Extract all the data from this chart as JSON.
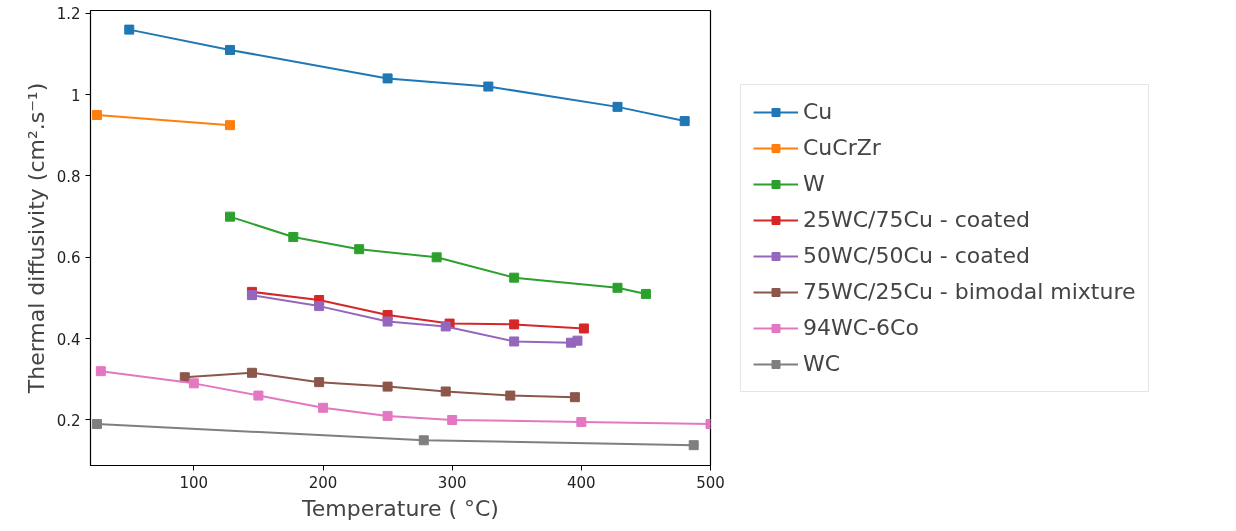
{
  "chart_data": {
    "type": "line",
    "xlabel": "Temperature ( °C)",
    "ylabel": "Thermal diffusivity (cm².s⁻¹)",
    "xlim": [
      20,
      500
    ],
    "ylim": [
      0.088,
      1.207
    ],
    "xticks": [
      100,
      200,
      300,
      400,
      500
    ],
    "yticks": [
      0.2,
      0.4,
      0.6,
      0.8,
      1.0,
      1.2
    ],
    "grid": false,
    "legend": "right",
    "marker": "square",
    "line_style": "solid",
    "series": [
      {
        "name": "Cu",
        "color": "#1f77b4",
        "x": [
          50,
          128,
          250,
          328,
          428,
          480
        ],
        "values": [
          1.16,
          1.11,
          1.04,
          1.02,
          0.97,
          0.935
        ]
      },
      {
        "name": "CuCrZr",
        "color": "#ff7f0e",
        "x": [
          25,
          128
        ],
        "values": [
          0.95,
          0.925
        ]
      },
      {
        "name": "W",
        "color": "#2ca02c",
        "x": [
          128,
          177,
          228,
          288,
          348,
          428,
          450
        ],
        "values": [
          0.7,
          0.65,
          0.62,
          0.6,
          0.55,
          0.525,
          0.51
        ]
      },
      {
        "name": "25WC/75Cu - coated",
        "color": "#d62728",
        "x": [
          145,
          197,
          250,
          298,
          348,
          402
        ],
        "values": [
          0.515,
          0.495,
          0.458,
          0.437,
          0.435,
          0.425
        ]
      },
      {
        "name": "50WC/50Cu - coated",
        "color": "#9467bd",
        "x": [
          145,
          197,
          250,
          295,
          348,
          392,
          397
        ],
        "values": [
          0.507,
          0.48,
          0.442,
          0.43,
          0.393,
          0.39,
          0.395
        ]
      },
      {
        "name": "75WC/25Cu - bimodal mixture",
        "color": "#8c564b",
        "x": [
          93,
          145,
          197,
          250,
          295,
          345,
          395
        ],
        "values": [
          0.305,
          0.316,
          0.293,
          0.282,
          0.27,
          0.26,
          0.256
        ]
      },
      {
        "name": "94WC-6Co",
        "color": "#e377c2",
        "x": [
          28,
          100,
          150,
          200,
          250,
          300,
          400,
          500
        ],
        "values": [
          0.32,
          0.29,
          0.26,
          0.23,
          0.21,
          0.2,
          0.195,
          0.19
        ]
      },
      {
        "name": "WC",
        "color": "#7f7f7f",
        "x": [
          25,
          278,
          487
        ],
        "values": [
          0.19,
          0.15,
          0.138
        ]
      }
    ]
  }
}
